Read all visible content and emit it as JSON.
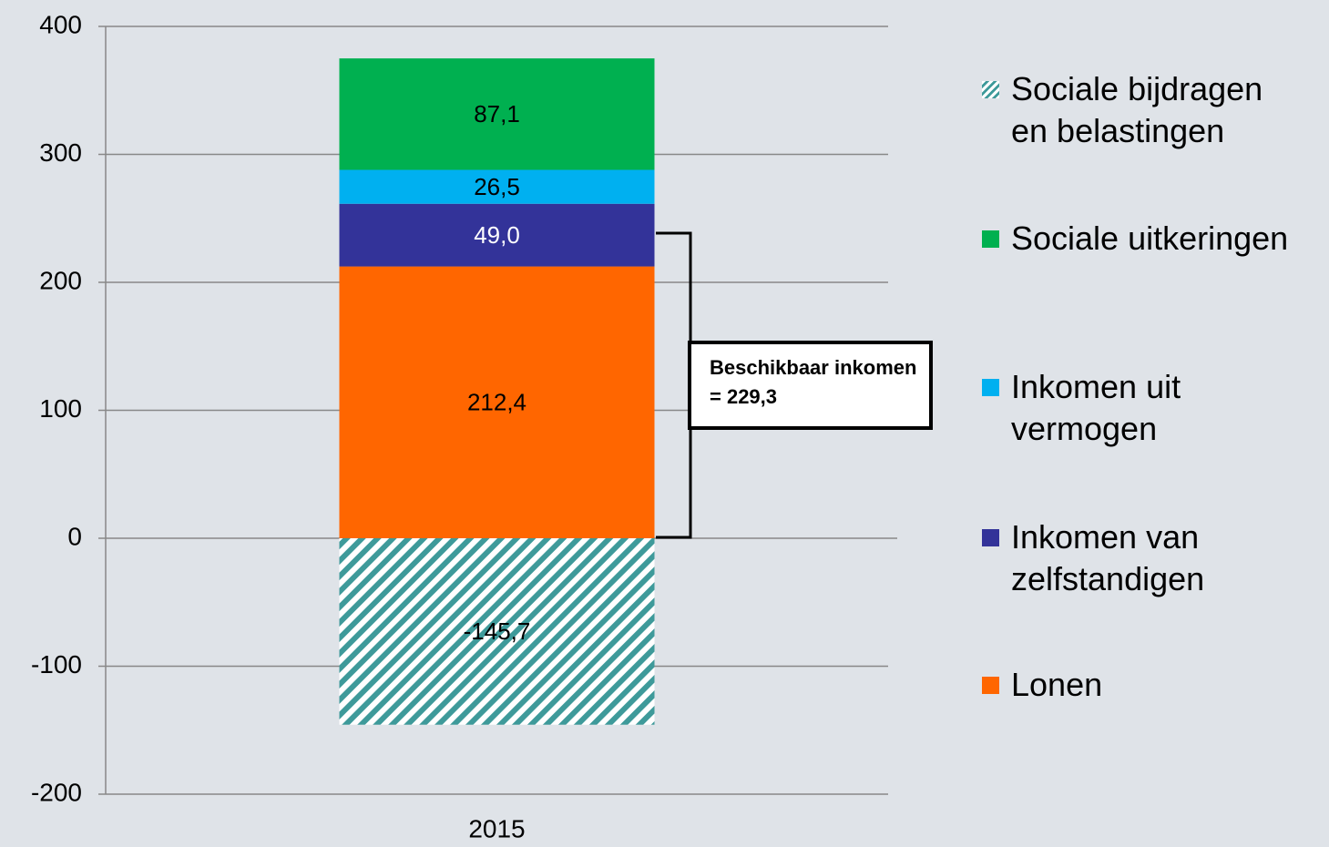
{
  "chart_data": {
    "type": "bar",
    "stacked": true,
    "categories": [
      "2015"
    ],
    "series": [
      {
        "name": "Lonen",
        "color": "#ff6600",
        "values": [
          212.4
        ],
        "value_labels": [
          "212,4"
        ]
      },
      {
        "name": "Inkomen van zelfstandigen",
        "color": "#333399",
        "values": [
          49.0
        ],
        "value_labels": [
          "49,0"
        ]
      },
      {
        "name": "Inkomen uit vermogen",
        "color": "#00b0f0",
        "values": [
          26.5
        ],
        "value_labels": [
          "26,5"
        ]
      },
      {
        "name": "Sociale uitkeringen",
        "color": "#00b050",
        "values": [
          87.1
        ],
        "value_labels": [
          "87,1"
        ]
      },
      {
        "name": "Sociale bijdragen en belastingen",
        "color": "#3e9a9a",
        "pattern": "hatch",
        "values": [
          -145.7
        ],
        "value_labels": [
          "-145,7"
        ]
      }
    ],
    "legend_order": [
      4,
      3,
      2,
      1,
      0
    ],
    "legend_position": "right",
    "annotation": "Beschikbaar inkomen = 229,3",
    "ylim": [
      -200,
      400
    ],
    "yticks": [
      -200,
      -100,
      0,
      100,
      200,
      300,
      400
    ],
    "grid": true
  }
}
